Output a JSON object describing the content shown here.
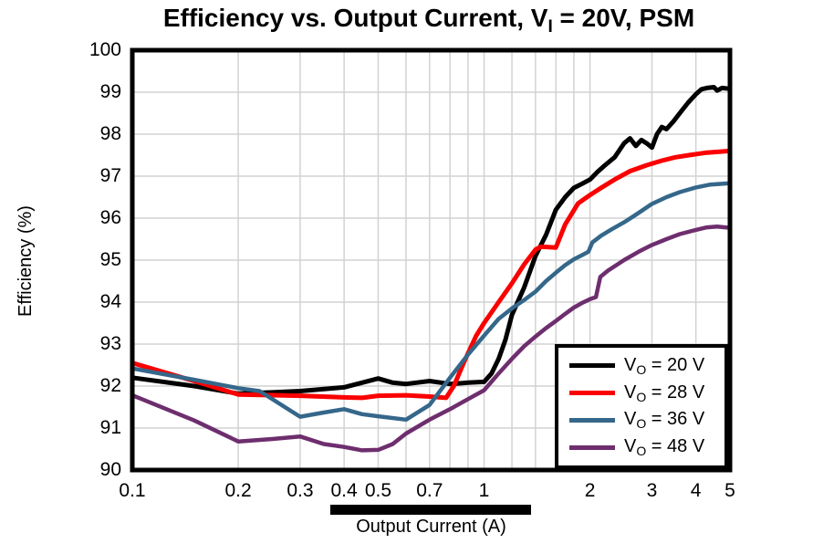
{
  "chart_data": {
    "type": "line",
    "title": {
      "pre": "Efficiency vs. Output Current, V",
      "sub": "I",
      "post": " = 20V, PSM"
    },
    "xlabel": "Output Current (A)",
    "ylabel": "Efficiency (%)",
    "x_scale": "log",
    "xlim": [
      0.1,
      5
    ],
    "ylim": [
      90,
      100
    ],
    "grid": true,
    "grid_color": "#d2d2d2",
    "axis_color": "#000000",
    "legend_position": "lower right",
    "x_ticks": [
      {
        "value": 0.1,
        "label": "0.1"
      },
      {
        "value": 0.2,
        "label": "0.2"
      },
      {
        "value": 0.3,
        "label": "0.3"
      },
      {
        "value": 0.4,
        "label": "0.4"
      },
      {
        "value": 0.5,
        "label": "0.5"
      },
      {
        "value": 0.7,
        "label": "0.7"
      },
      {
        "value": 1,
        "label": "1"
      },
      {
        "value": 2,
        "label": "2"
      },
      {
        "value": 3,
        "label": "3"
      },
      {
        "value": 4,
        "label": "4"
      },
      {
        "value": 5,
        "label": "5"
      }
    ],
    "x_gridlines": [
      0.2,
      0.3,
      0.4,
      0.5,
      0.6,
      0.7,
      0.8,
      0.9,
      1,
      1.2,
      1.4,
      1.6,
      1.8,
      2,
      3,
      4
    ],
    "y_ticks": [
      {
        "value": 90,
        "label": "90"
      },
      {
        "value": 91,
        "label": "91"
      },
      {
        "value": 92,
        "label": "92"
      },
      {
        "value": 93,
        "label": "93"
      },
      {
        "value": 94,
        "label": "94"
      },
      {
        "value": 95,
        "label": "95"
      },
      {
        "value": 96,
        "label": "96"
      },
      {
        "value": 97,
        "label": "97"
      },
      {
        "value": 98,
        "label": "98"
      },
      {
        "value": 99,
        "label": "99"
      },
      {
        "value": 100,
        "label": "100"
      }
    ],
    "series": [
      {
        "id": "vo-20v",
        "name": "VO = 20 V",
        "label": {
          "pre": "V",
          "sub": "O",
          "post": " = 20 V"
        },
        "color": "#000000",
        "width": 5,
        "points": [
          [
            0.1,
            92.2
          ],
          [
            0.15,
            92.0
          ],
          [
            0.2,
            91.82
          ],
          [
            0.25,
            91.85
          ],
          [
            0.3,
            91.88
          ],
          [
            0.4,
            91.97
          ],
          [
            0.45,
            92.08
          ],
          [
            0.5,
            92.18
          ],
          [
            0.55,
            92.08
          ],
          [
            0.6,
            92.05
          ],
          [
            0.7,
            92.12
          ],
          [
            0.8,
            92.05
          ],
          [
            0.9,
            92.08
          ],
          [
            1.0,
            92.1
          ],
          [
            1.05,
            92.3
          ],
          [
            1.1,
            92.65
          ],
          [
            1.15,
            93.1
          ],
          [
            1.2,
            93.7
          ],
          [
            1.3,
            94.35
          ],
          [
            1.4,
            95.1
          ],
          [
            1.5,
            95.6
          ],
          [
            1.6,
            96.2
          ],
          [
            1.7,
            96.5
          ],
          [
            1.8,
            96.72
          ],
          [
            1.9,
            96.82
          ],
          [
            2.0,
            96.92
          ],
          [
            2.1,
            97.1
          ],
          [
            2.2,
            97.25
          ],
          [
            2.35,
            97.45
          ],
          [
            2.5,
            97.78
          ],
          [
            2.6,
            97.9
          ],
          [
            2.7,
            97.72
          ],
          [
            2.8,
            97.86
          ],
          [
            2.9,
            97.78
          ],
          [
            3.0,
            97.68
          ],
          [
            3.1,
            98.0
          ],
          [
            3.2,
            98.17
          ],
          [
            3.3,
            98.12
          ],
          [
            3.45,
            98.3
          ],
          [
            3.6,
            98.5
          ],
          [
            3.8,
            98.75
          ],
          [
            4.0,
            98.95
          ],
          [
            4.15,
            99.07
          ],
          [
            4.3,
            99.1
          ],
          [
            4.5,
            99.12
          ],
          [
            4.6,
            99.04
          ],
          [
            4.75,
            99.1
          ],
          [
            5.0,
            99.08
          ]
        ]
      },
      {
        "id": "vo-28v",
        "name": "VO = 28 V",
        "label": {
          "pre": "V",
          "sub": "O",
          "post": " = 28 V"
        },
        "color": "#fb0000",
        "width": 5,
        "points": [
          [
            0.1,
            92.55
          ],
          [
            0.15,
            92.12
          ],
          [
            0.2,
            91.8
          ],
          [
            0.3,
            91.77
          ],
          [
            0.4,
            91.73
          ],
          [
            0.45,
            91.72
          ],
          [
            0.5,
            91.77
          ],
          [
            0.6,
            91.78
          ],
          [
            0.7,
            91.75
          ],
          [
            0.78,
            91.72
          ],
          [
            0.82,
            92.0
          ],
          [
            0.88,
            92.6
          ],
          [
            0.95,
            93.2
          ],
          [
            1.0,
            93.5
          ],
          [
            1.1,
            94.0
          ],
          [
            1.2,
            94.45
          ],
          [
            1.3,
            94.9
          ],
          [
            1.4,
            95.25
          ],
          [
            1.45,
            95.32
          ],
          [
            1.6,
            95.3
          ],
          [
            1.7,
            95.85
          ],
          [
            1.85,
            96.35
          ],
          [
            2.0,
            96.55
          ],
          [
            2.15,
            96.72
          ],
          [
            2.35,
            96.92
          ],
          [
            2.6,
            97.12
          ],
          [
            2.9,
            97.26
          ],
          [
            3.2,
            97.37
          ],
          [
            3.5,
            97.45
          ],
          [
            3.9,
            97.51
          ],
          [
            4.3,
            97.56
          ],
          [
            5.0,
            97.6
          ]
        ]
      },
      {
        "id": "vo-36v",
        "name": "VO = 36 V",
        "label": {
          "pre": "V",
          "sub": "O",
          "post": " = 36 V"
        },
        "color": "#35678a",
        "width": 4.5,
        "points": [
          [
            0.1,
            92.42
          ],
          [
            0.15,
            92.15
          ],
          [
            0.2,
            91.95
          ],
          [
            0.23,
            91.88
          ],
          [
            0.3,
            91.27
          ],
          [
            0.35,
            91.37
          ],
          [
            0.4,
            91.45
          ],
          [
            0.45,
            91.33
          ],
          [
            0.5,
            91.28
          ],
          [
            0.6,
            91.2
          ],
          [
            0.7,
            91.55
          ],
          [
            0.8,
            92.2
          ],
          [
            0.9,
            92.75
          ],
          [
            1.0,
            93.2
          ],
          [
            1.1,
            93.6
          ],
          [
            1.2,
            93.85
          ],
          [
            1.3,
            94.05
          ],
          [
            1.4,
            94.25
          ],
          [
            1.5,
            94.5
          ],
          [
            1.6,
            94.7
          ],
          [
            1.7,
            94.88
          ],
          [
            1.8,
            95.02
          ],
          [
            1.9,
            95.12
          ],
          [
            1.98,
            95.2
          ],
          [
            2.03,
            95.42
          ],
          [
            2.15,
            95.58
          ],
          [
            2.3,
            95.73
          ],
          [
            2.5,
            95.9
          ],
          [
            2.7,
            96.08
          ],
          [
            3.0,
            96.34
          ],
          [
            3.3,
            96.5
          ],
          [
            3.6,
            96.62
          ],
          [
            4.0,
            96.73
          ],
          [
            4.4,
            96.8
          ],
          [
            5.0,
            96.83
          ]
        ]
      },
      {
        "id": "vo-48v",
        "name": "VO = 48 V",
        "label": {
          "pre": "V",
          "sub": "O",
          "post": " = 48 V"
        },
        "color": "#6e2e6e",
        "width": 4.5,
        "points": [
          [
            0.1,
            91.78
          ],
          [
            0.15,
            91.18
          ],
          [
            0.2,
            90.68
          ],
          [
            0.25,
            90.74
          ],
          [
            0.3,
            90.8
          ],
          [
            0.35,
            90.62
          ],
          [
            0.4,
            90.55
          ],
          [
            0.45,
            90.47
          ],
          [
            0.5,
            90.48
          ],
          [
            0.55,
            90.62
          ],
          [
            0.6,
            90.87
          ],
          [
            0.7,
            91.2
          ],
          [
            0.8,
            91.45
          ],
          [
            0.9,
            91.69
          ],
          [
            1.0,
            91.9
          ],
          [
            1.1,
            92.3
          ],
          [
            1.2,
            92.65
          ],
          [
            1.3,
            92.95
          ],
          [
            1.4,
            93.18
          ],
          [
            1.5,
            93.38
          ],
          [
            1.6,
            93.55
          ],
          [
            1.7,
            93.72
          ],
          [
            1.8,
            93.87
          ],
          [
            1.9,
            93.98
          ],
          [
            2.0,
            94.07
          ],
          [
            2.08,
            94.12
          ],
          [
            2.14,
            94.6
          ],
          [
            2.25,
            94.75
          ],
          [
            2.5,
            95.0
          ],
          [
            2.75,
            95.2
          ],
          [
            3.0,
            95.36
          ],
          [
            3.3,
            95.5
          ],
          [
            3.6,
            95.62
          ],
          [
            4.0,
            95.72
          ],
          [
            4.3,
            95.78
          ],
          [
            4.6,
            95.8
          ],
          [
            5.0,
            95.77
          ]
        ]
      }
    ]
  }
}
